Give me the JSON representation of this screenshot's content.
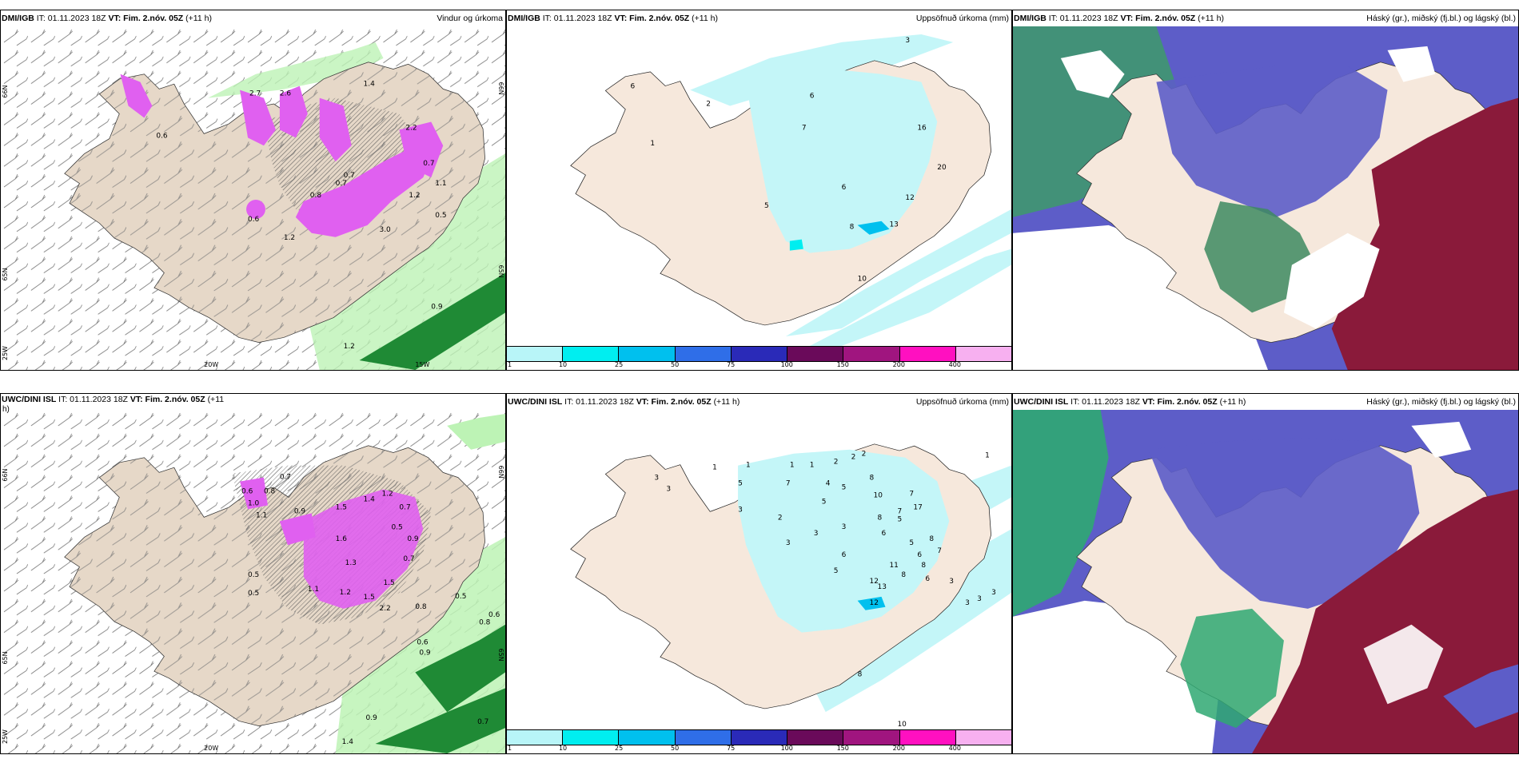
{
  "panels": [
    {
      "id": "p1",
      "model": "DMI/IGB",
      "it_label": "IT: 01.11.2023 18Z",
      "vt_label": "VT: Fim. 2.nóv. 05Z",
      "lead": "(+11 h)",
      "right_title": "Vindur og úrkoma",
      "labels": [
        "0.6",
        "2.7",
        "2.6",
        "1.4",
        "2.2",
        "0.7",
        "0.8",
        "0.6",
        "0.7",
        "3.0",
        "0.7",
        "1.2",
        "1.1",
        "0.5",
        "1.2",
        "0.9",
        "1.2"
      ],
      "axis_labels": [
        "66N",
        "65N",
        "20W",
        "15W",
        "25W",
        "66N",
        "65N"
      ]
    },
    {
      "id": "p2",
      "model": "DMI/IGB",
      "it_label": "IT: 01.11.2023 18Z",
      "vt_label": "VT: Fim. 2.nóv. 05Z",
      "lead": "(+11 h)",
      "right_title": "Uppsöfnuð úrkoma (mm)",
      "labels": [
        "3",
        "6",
        "2",
        "6",
        "7",
        "1",
        "16",
        "20",
        "6",
        "12",
        "5",
        "13",
        "8",
        "10"
      ],
      "colorbar_ticks": [
        "1",
        "10",
        "25",
        "50",
        "75",
        "100",
        "150",
        "200",
        "400"
      ]
    },
    {
      "id": "p3",
      "model": "DMI/IGB",
      "it_label": "IT: 01.11.2023 18Z",
      "vt_label": "VT: Fim. 2.nóv. 05Z",
      "lead": "(+11 h)",
      "right_title": "Háský (gr.), miðský (fj.bl.) og lágský (bl.)"
    },
    {
      "id": "p4",
      "model": "UWC/DINI ISL",
      "it_label": "IT: 01.11.2023 18Z",
      "vt_label": "VT: Fim. 2.nóv. 05Z",
      "lead": "(+11",
      "lead_cont": "h)",
      "right_title": "",
      "labels": [
        "0.6",
        "0.7",
        "0.8",
        "1.0",
        "0.9",
        "1.1",
        "1.5",
        "1.4",
        "1.2",
        "0.7",
        "0.5",
        "0.9",
        "1.6",
        "0.5",
        "1.3",
        "1.5",
        "2.2",
        "0.5",
        "0.6",
        "0.8",
        "0.6",
        "0.9",
        "0.8",
        "0.7",
        "0.9",
        "1.4",
        "0.5",
        "1.1",
        "1.2",
        "1.5",
        "0.7"
      ],
      "axis_labels": [
        "66N",
        "65N",
        "20W",
        "25W",
        "66N",
        "65N"
      ]
    },
    {
      "id": "p5",
      "model": "UWC/DINI ISL",
      "it_label": "IT: 01.11.2023 18Z",
      "vt_label": "VT: Fim. 2.nóv. 05Z",
      "lead": "(+11 h)",
      "right_title": "Uppsöfnuð úrkoma (mm)",
      "labels": [
        "1",
        "1",
        "1",
        "1",
        "2",
        "2",
        "2",
        "3",
        "5",
        "3",
        "7",
        "4",
        "5",
        "8",
        "10",
        "7",
        "7",
        "5",
        "17",
        "8",
        "2",
        "3",
        "3",
        "5",
        "3",
        "6",
        "3",
        "6",
        "5",
        "8",
        "6",
        "7",
        "8",
        "11",
        "5",
        "8",
        "12",
        "13",
        "6",
        "12",
        "3",
        "3",
        "3",
        "3",
        "8",
        "10",
        "1"
      ],
      "colorbar_ticks": [
        "1",
        "10",
        "25",
        "50",
        "75",
        "100",
        "150",
        "200",
        "400"
      ]
    },
    {
      "id": "p6",
      "model": "UWC/DINI ISL",
      "it_label": "IT: 01.11.2023 18Z",
      "vt_label": "VT: Fim. 2.nóv. 05Z",
      "lead": "(+11 h)",
      "right_title": "Háský (gr.), miðský (fj.bl.) og lágský (bl.)"
    }
  ],
  "colorbar_colors": [
    "#b8f5f8",
    "#00eef0",
    "#00c0ee",
    "#2f6ee8",
    "#2a2ab8",
    "#6a0a5a",
    "#a0157f",
    "#ff10c0",
    "#f7b0f0"
  ],
  "colors": {
    "land": "#f5e6d8",
    "precip_magenta": "#e060f0",
    "precip_green": "#a8f0a0",
    "precip_dark_green": "#1a7a2a",
    "precip_cyan": "#b8f5f8",
    "cloud_high": "#2d8a5a",
    "cloud_mid": "#5a5ac8",
    "cloud_low": "#8a1a3a"
  }
}
